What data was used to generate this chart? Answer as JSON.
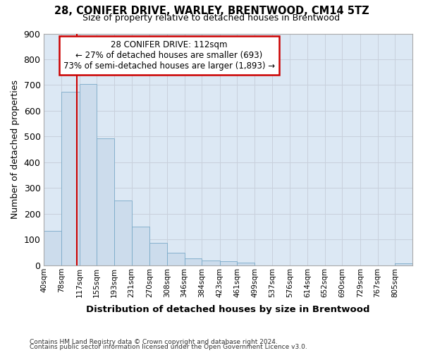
{
  "title1": "28, CONIFER DRIVE, WARLEY, BRENTWOOD, CM14 5TZ",
  "title2": "Size of property relative to detached houses in Brentwood",
  "xlabel": "Distribution of detached houses by size in Brentwood",
  "ylabel": "Number of detached properties",
  "footer1": "Contains HM Land Registry data © Crown copyright and database right 2024.",
  "footer2": "Contains public sector information licensed under the Open Government Licence v3.0.",
  "bar_color": "#ccdcec",
  "bar_edge_color": "#7aaac8",
  "grid_color": "#c8d0dc",
  "bg_color": "#dce8f4",
  "annotation_box_color": "#cc0000",
  "vline_color": "#cc0000",
  "property_size": 112,
  "annotation_line1": "28 CONIFER DRIVE: 112sqm",
  "annotation_line2": "← 27% of detached houses are smaller (693)",
  "annotation_line3": "73% of semi-detached houses are larger (1,893) →",
  "bin_labels": [
    "40sqm",
    "78sqm",
    "117sqm",
    "155sqm",
    "193sqm",
    "231sqm",
    "270sqm",
    "308sqm",
    "346sqm",
    "384sqm",
    "423sqm",
    "461sqm",
    "499sqm",
    "537sqm",
    "576sqm",
    "614sqm",
    "652sqm",
    "690sqm",
    "729sqm",
    "767sqm",
    "805sqm"
  ],
  "bin_edges": [
    40,
    78,
    117,
    155,
    193,
    231,
    270,
    308,
    346,
    384,
    423,
    461,
    499,
    537,
    576,
    614,
    652,
    690,
    729,
    767,
    805
  ],
  "bar_heights": [
    135,
    675,
    705,
    492,
    253,
    150,
    88,
    50,
    28,
    20,
    17,
    12,
    0,
    0,
    0,
    0,
    0,
    0,
    0,
    0,
    8
  ],
  "ylim": [
    0,
    900
  ],
  "yticks": [
    0,
    100,
    200,
    300,
    400,
    500,
    600,
    700,
    800,
    900
  ],
  "background_color": "#ffffff"
}
